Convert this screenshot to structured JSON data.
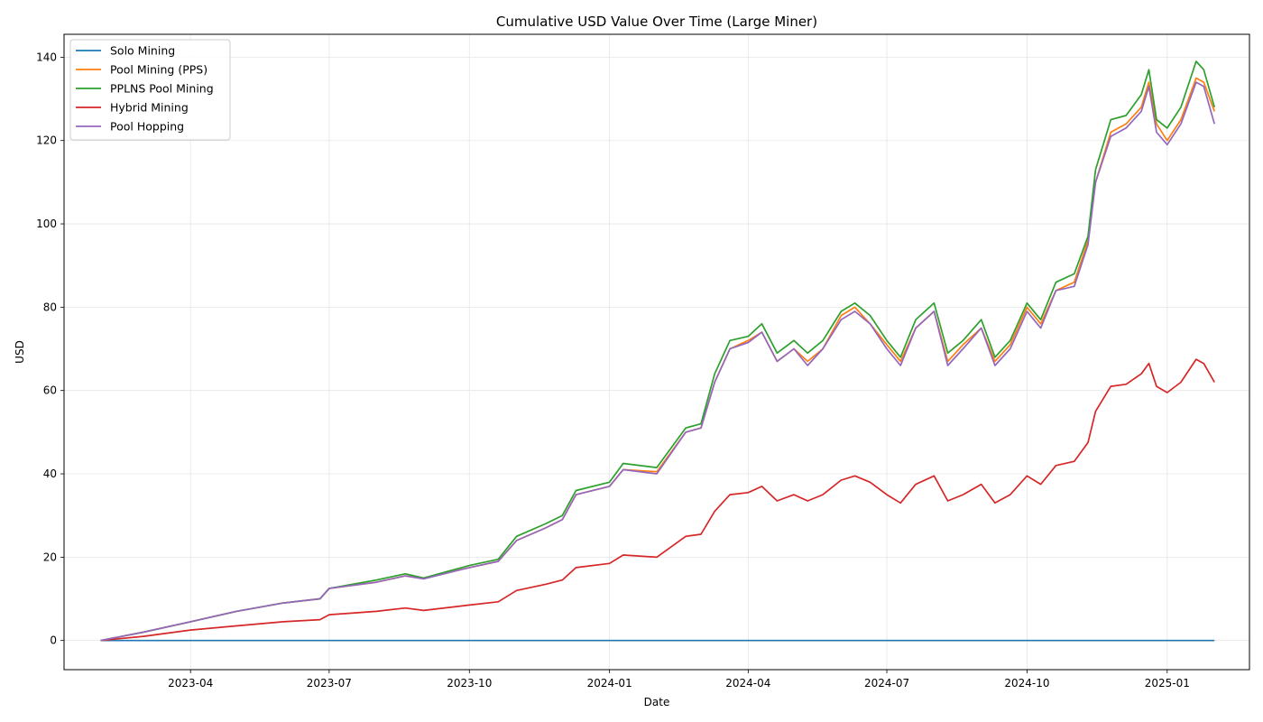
{
  "chart_data": {
    "type": "line",
    "title": "Cumulative USD Value Over Time (Large Miner)",
    "xlabel": "Date",
    "ylabel": "USD",
    "xlim": [
      "2023-01-08",
      "2025-02-24"
    ],
    "ylim": [
      -7,
      145.5
    ],
    "x_ticks": [
      "2023-04-01",
      "2023-07-01",
      "2023-10-01",
      "2024-01-01",
      "2024-04-01",
      "2024-07-01",
      "2024-10-01",
      "2025-01-01"
    ],
    "x_tick_labels": [
      "2023-04",
      "2023-07",
      "2023-10",
      "2024-01",
      "2024-04",
      "2024-07",
      "2024-10",
      "2025-01"
    ],
    "y_ticks": [
      0,
      20,
      40,
      60,
      80,
      100,
      120,
      140
    ],
    "y_tick_labels": [
      "0",
      "20",
      "40",
      "60",
      "80",
      "100",
      "120",
      "140"
    ],
    "grid": true,
    "legend_position": "top-left",
    "series": [
      {
        "name": "Solo Mining",
        "color": "#1f77b4",
        "points": [
          [
            "2023-02-01",
            0
          ],
          [
            "2025-02-01",
            0
          ]
        ]
      },
      {
        "name": "Pool Mining (PPS)",
        "color": "#ff7f0e",
        "points": [
          [
            "2023-02-01",
            0
          ],
          [
            "2023-03-01",
            2
          ],
          [
            "2023-04-01",
            4.5
          ],
          [
            "2023-05-01",
            7
          ],
          [
            "2023-06-01",
            9
          ],
          [
            "2023-06-25",
            10
          ],
          [
            "2023-07-01",
            12.5
          ],
          [
            "2023-08-01",
            14
          ],
          [
            "2023-08-20",
            15.5
          ],
          [
            "2023-09-01",
            15
          ],
          [
            "2023-10-01",
            17.5
          ],
          [
            "2023-10-20",
            19
          ],
          [
            "2023-11-01",
            24
          ],
          [
            "2023-11-20",
            27
          ],
          [
            "2023-12-01",
            29
          ],
          [
            "2023-12-10",
            35
          ],
          [
            "2024-01-01",
            37
          ],
          [
            "2024-01-10",
            41
          ],
          [
            "2024-02-01",
            40.5
          ],
          [
            "2024-02-20",
            50
          ],
          [
            "2024-03-01",
            51
          ],
          [
            "2024-03-10",
            62
          ],
          [
            "2024-03-20",
            70
          ],
          [
            "2024-04-01",
            72
          ],
          [
            "2024-04-10",
            74
          ],
          [
            "2024-04-20",
            67
          ],
          [
            "2024-05-01",
            70
          ],
          [
            "2024-05-10",
            67
          ],
          [
            "2024-05-20",
            70
          ],
          [
            "2024-06-01",
            78
          ],
          [
            "2024-06-10",
            80
          ],
          [
            "2024-06-20",
            76
          ],
          [
            "2024-07-01",
            71
          ],
          [
            "2024-07-10",
            67
          ],
          [
            "2024-07-20",
            75
          ],
          [
            "2024-08-01",
            79
          ],
          [
            "2024-08-10",
            67
          ],
          [
            "2024-08-20",
            71
          ],
          [
            "2024-09-01",
            75
          ],
          [
            "2024-09-10",
            67
          ],
          [
            "2024-09-20",
            71
          ],
          [
            "2024-10-01",
            80
          ],
          [
            "2024-10-10",
            76
          ],
          [
            "2024-10-20",
            84
          ],
          [
            "2024-11-01",
            86
          ],
          [
            "2024-11-10",
            96
          ],
          [
            "2024-11-15",
            110
          ],
          [
            "2024-11-25",
            122
          ],
          [
            "2024-12-05",
            124
          ],
          [
            "2024-12-15",
            128
          ],
          [
            "2024-12-20",
            134
          ],
          [
            "2024-12-25",
            124
          ],
          [
            "2025-01-01",
            120
          ],
          [
            "2025-01-10",
            125
          ],
          [
            "2025-01-20",
            135
          ],
          [
            "2025-01-25",
            134
          ],
          [
            "2025-02-01",
            127
          ]
        ]
      },
      {
        "name": "PPLNS Pool Mining",
        "color": "#2ca02c",
        "points": [
          [
            "2023-02-01",
            0
          ],
          [
            "2023-03-01",
            2
          ],
          [
            "2023-04-01",
            4.5
          ],
          [
            "2023-05-01",
            7
          ],
          [
            "2023-06-01",
            9
          ],
          [
            "2023-06-25",
            10
          ],
          [
            "2023-07-01",
            12.5
          ],
          [
            "2023-08-01",
            14.5
          ],
          [
            "2023-08-20",
            16
          ],
          [
            "2023-09-01",
            15
          ],
          [
            "2023-10-01",
            18
          ],
          [
            "2023-10-20",
            19.5
          ],
          [
            "2023-11-01",
            25
          ],
          [
            "2023-11-20",
            28
          ],
          [
            "2023-12-01",
            30
          ],
          [
            "2023-12-10",
            36
          ],
          [
            "2024-01-01",
            38
          ],
          [
            "2024-01-10",
            42.5
          ],
          [
            "2024-02-01",
            41.5
          ],
          [
            "2024-02-20",
            51
          ],
          [
            "2024-03-01",
            52
          ],
          [
            "2024-03-10",
            64
          ],
          [
            "2024-03-20",
            72
          ],
          [
            "2024-04-01",
            73
          ],
          [
            "2024-04-10",
            76
          ],
          [
            "2024-04-20",
            69
          ],
          [
            "2024-05-01",
            72
          ],
          [
            "2024-05-10",
            69
          ],
          [
            "2024-05-20",
            72
          ],
          [
            "2024-06-01",
            79
          ],
          [
            "2024-06-10",
            81
          ],
          [
            "2024-06-20",
            78
          ],
          [
            "2024-07-01",
            72
          ],
          [
            "2024-07-10",
            68
          ],
          [
            "2024-07-20",
            77
          ],
          [
            "2024-08-01",
            81
          ],
          [
            "2024-08-10",
            69
          ],
          [
            "2024-08-20",
            72
          ],
          [
            "2024-09-01",
            77
          ],
          [
            "2024-09-10",
            68
          ],
          [
            "2024-09-20",
            72
          ],
          [
            "2024-10-01",
            81
          ],
          [
            "2024-10-10",
            77
          ],
          [
            "2024-10-20",
            86
          ],
          [
            "2024-11-01",
            88
          ],
          [
            "2024-11-10",
            97
          ],
          [
            "2024-11-15",
            113
          ],
          [
            "2024-11-25",
            125
          ],
          [
            "2024-12-05",
            126
          ],
          [
            "2024-12-15",
            131
          ],
          [
            "2024-12-20",
            137
          ],
          [
            "2024-12-25",
            125
          ],
          [
            "2025-01-01",
            123
          ],
          [
            "2025-01-10",
            128
          ],
          [
            "2025-01-20",
            139
          ],
          [
            "2025-01-25",
            137
          ],
          [
            "2025-02-01",
            128
          ]
        ]
      },
      {
        "name": "Hybrid Mining",
        "color": "#d62728",
        "points": [
          [
            "2023-02-01",
            0
          ],
          [
            "2023-03-01",
            1
          ],
          [
            "2023-04-01",
            2.5
          ],
          [
            "2023-05-01",
            3.5
          ],
          [
            "2023-06-01",
            4.5
          ],
          [
            "2023-06-25",
            5
          ],
          [
            "2023-07-01",
            6.2
          ],
          [
            "2023-08-01",
            7
          ],
          [
            "2023-08-20",
            7.8
          ],
          [
            "2023-09-01",
            7.2
          ],
          [
            "2023-10-01",
            8.5
          ],
          [
            "2023-10-20",
            9.3
          ],
          [
            "2023-11-01",
            12
          ],
          [
            "2023-11-20",
            13.5
          ],
          [
            "2023-12-01",
            14.5
          ],
          [
            "2023-12-10",
            17.5
          ],
          [
            "2024-01-01",
            18.5
          ],
          [
            "2024-01-10",
            20.5
          ],
          [
            "2024-02-01",
            20
          ],
          [
            "2024-02-20",
            25
          ],
          [
            "2024-03-01",
            25.5
          ],
          [
            "2024-03-10",
            31
          ],
          [
            "2024-03-20",
            35
          ],
          [
            "2024-04-01",
            35.5
          ],
          [
            "2024-04-10",
            37
          ],
          [
            "2024-04-20",
            33.5
          ],
          [
            "2024-05-01",
            35
          ],
          [
            "2024-05-10",
            33.5
          ],
          [
            "2024-05-20",
            35
          ],
          [
            "2024-06-01",
            38.5
          ],
          [
            "2024-06-10",
            39.5
          ],
          [
            "2024-06-20",
            38
          ],
          [
            "2024-07-01",
            35
          ],
          [
            "2024-07-10",
            33
          ],
          [
            "2024-07-20",
            37.5
          ],
          [
            "2024-08-01",
            39.5
          ],
          [
            "2024-08-10",
            33.5
          ],
          [
            "2024-08-20",
            35
          ],
          [
            "2024-09-01",
            37.5
          ],
          [
            "2024-09-10",
            33
          ],
          [
            "2024-09-20",
            35
          ],
          [
            "2024-10-01",
            39.5
          ],
          [
            "2024-10-10",
            37.5
          ],
          [
            "2024-10-20",
            42
          ],
          [
            "2024-11-01",
            43
          ],
          [
            "2024-11-10",
            47.5
          ],
          [
            "2024-11-15",
            55
          ],
          [
            "2024-11-25",
            61
          ],
          [
            "2024-12-05",
            61.5
          ],
          [
            "2024-12-15",
            64
          ],
          [
            "2024-12-20",
            66.5
          ],
          [
            "2024-12-25",
            61
          ],
          [
            "2025-01-01",
            59.5
          ],
          [
            "2025-01-10",
            62
          ],
          [
            "2025-01-20",
            67.5
          ],
          [
            "2025-01-25",
            66.5
          ],
          [
            "2025-02-01",
            62
          ]
        ]
      },
      {
        "name": "Pool Hopping",
        "color": "#9467bd",
        "points": [
          [
            "2023-02-01",
            0
          ],
          [
            "2023-03-01",
            2
          ],
          [
            "2023-04-01",
            4.5
          ],
          [
            "2023-05-01",
            7
          ],
          [
            "2023-06-01",
            9
          ],
          [
            "2023-06-25",
            10
          ],
          [
            "2023-07-01",
            12.5
          ],
          [
            "2023-08-01",
            14
          ],
          [
            "2023-08-20",
            15.5
          ],
          [
            "2023-09-01",
            14.8
          ],
          [
            "2023-10-01",
            17.5
          ],
          [
            "2023-10-20",
            19
          ],
          [
            "2023-11-01",
            24
          ],
          [
            "2023-11-20",
            27
          ],
          [
            "2023-12-01",
            29
          ],
          [
            "2023-12-10",
            35
          ],
          [
            "2024-01-01",
            37
          ],
          [
            "2024-01-10",
            41
          ],
          [
            "2024-02-01",
            40
          ],
          [
            "2024-02-20",
            50
          ],
          [
            "2024-03-01",
            51
          ],
          [
            "2024-03-10",
            62
          ],
          [
            "2024-03-20",
            70
          ],
          [
            "2024-04-01",
            71.5
          ],
          [
            "2024-04-10",
            74
          ],
          [
            "2024-04-20",
            67
          ],
          [
            "2024-05-01",
            70
          ],
          [
            "2024-05-10",
            66
          ],
          [
            "2024-05-20",
            70
          ],
          [
            "2024-06-01",
            77
          ],
          [
            "2024-06-10",
            79
          ],
          [
            "2024-06-20",
            76
          ],
          [
            "2024-07-01",
            70
          ],
          [
            "2024-07-10",
            66
          ],
          [
            "2024-07-20",
            75
          ],
          [
            "2024-08-01",
            79
          ],
          [
            "2024-08-10",
            66
          ],
          [
            "2024-08-20",
            70
          ],
          [
            "2024-09-01",
            75
          ],
          [
            "2024-09-10",
            66
          ],
          [
            "2024-09-20",
            70
          ],
          [
            "2024-10-01",
            79
          ],
          [
            "2024-10-10",
            75
          ],
          [
            "2024-10-20",
            84
          ],
          [
            "2024-11-01",
            85
          ],
          [
            "2024-11-10",
            95
          ],
          [
            "2024-11-15",
            110
          ],
          [
            "2024-11-25",
            121
          ],
          [
            "2024-12-05",
            123
          ],
          [
            "2024-12-15",
            127
          ],
          [
            "2024-12-20",
            133
          ],
          [
            "2024-12-25",
            122
          ],
          [
            "2025-01-01",
            119
          ],
          [
            "2025-01-10",
            124
          ],
          [
            "2025-01-20",
            134
          ],
          [
            "2025-01-25",
            133
          ],
          [
            "2025-02-01",
            124
          ]
        ]
      }
    ]
  }
}
